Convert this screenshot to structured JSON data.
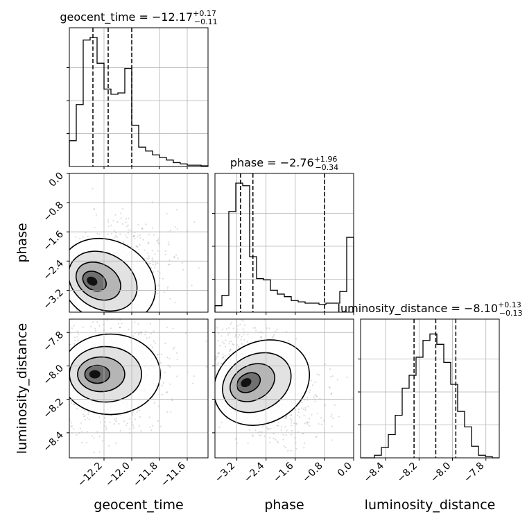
{
  "chart_data": {
    "type": "corner",
    "parameters": [
      "geocent_time",
      "phase",
      "luminosity_distance"
    ],
    "diagonal": [
      {
        "param": "geocent_time",
        "title_name": "geocent_time",
        "median": "−12.17",
        "err_plus": "+0.17",
        "err_minus": "−0.11",
        "quantiles": [
          -12.28,
          -12.17,
          -12.0
        ],
        "xlim": [
          -12.45,
          -11.45
        ],
        "hist": [
          0.2,
          0.48,
          0.98,
          1.0,
          0.8,
          0.6,
          0.56,
          0.57,
          0.76,
          0.32,
          0.15,
          0.12,
          0.09,
          0.07,
          0.05,
          0.03,
          0.02,
          0.01,
          0.01,
          0.005
        ]
      },
      {
        "param": "phase",
        "title_name": "phase",
        "median": "−2.76",
        "err_plus": "+1.96",
        "err_minus": "−0.34",
        "quantiles": [
          -3.1,
          -2.76,
          -0.8
        ],
        "xlim": [
          -3.8,
          0.0
        ],
        "hist": [
          0.05,
          0.13,
          0.78,
          1.0,
          0.98,
          0.43,
          0.26,
          0.25,
          0.17,
          0.14,
          0.12,
          0.09,
          0.08,
          0.07,
          0.07,
          0.06,
          0.07,
          0.07,
          0.16,
          0.58
        ]
      },
      {
        "param": "luminosity_distance",
        "title_name": "luminosity_distance",
        "median": "−8.10",
        "err_plus": "+0.13",
        "err_minus": "−0.13",
        "quantiles": [
          -8.23,
          -8.1,
          -7.98
        ],
        "xlim": [
          -8.55,
          -7.72
        ],
        "hist": [
          0.0,
          0.0,
          0.02,
          0.08,
          0.18,
          0.33,
          0.54,
          0.64,
          0.78,
          0.91,
          0.96,
          0.88,
          0.74,
          0.57,
          0.36,
          0.24,
          0.09,
          0.02,
          0.01,
          0.0
        ]
      }
    ],
    "pairs": [
      {
        "x": "geocent_time",
        "y": "phase",
        "xlim": [
          -12.45,
          -11.45
        ],
        "ylim": [
          -3.7,
          0.0
        ],
        "mode": [
          -12.3,
          -2.95
        ],
        "corr": -0.45
      },
      {
        "x": "geocent_time",
        "y": "luminosity_distance",
        "xlim": [
          -12.45,
          -11.45
        ],
        "ylim": [
          -8.55,
          -7.72
        ],
        "mode": [
          -12.28,
          -8.05
        ],
        "corr": 0.0
      },
      {
        "x": "phase",
        "y": "luminosity_distance",
        "xlim": [
          -3.8,
          0.0
        ],
        "ylim": [
          -8.55,
          -7.72
        ],
        "mode": [
          -3.0,
          -8.1
        ],
        "corr": 0.45
      }
    ],
    "ticks": {
      "geocent_time": [
        "−12.2",
        "−12.0",
        "−11.8",
        "−11.6"
      ],
      "phase": [
        "−3.2",
        "−2.4",
        "−1.6",
        "−0.8",
        "0.0"
      ],
      "luminosity_distance": [
        "−8.4",
        "−8.2",
        "−8.0",
        "−7.8"
      ]
    },
    "tick_values": {
      "geocent_time": [
        -12.2,
        -12.0,
        -11.8,
        -11.6
      ],
      "phase": [
        -3.2,
        -2.4,
        -1.6,
        -0.8,
        0.0
      ],
      "luminosity_distance": [
        -8.4,
        -8.2,
        -8.0,
        -7.8
      ]
    },
    "axis_labels": {
      "x": [
        "geocent_time",
        "phase",
        "luminosity_distance"
      ],
      "y": [
        "phase",
        "luminosity_distance"
      ]
    },
    "grid": true
  }
}
